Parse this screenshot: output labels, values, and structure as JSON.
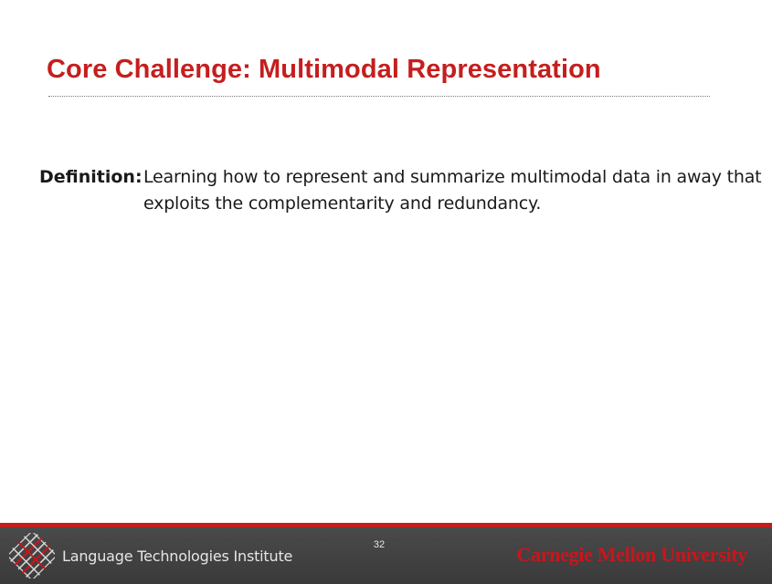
{
  "slide": {
    "title": "Core Challenge: Multimodal Representation",
    "definition_label": "Definition:",
    "definition_text": "Learning how to represent and summarize multimodal data in away that exploits the complementarity and redundancy."
  },
  "footer": {
    "institute": "Language Technologies Institute",
    "page_number": "32",
    "university": "Carnegie Mellon University",
    "logo_icon": "lti-logo-icon"
  },
  "colors": {
    "title": "#c51e1e",
    "accent_bar": "#c41b1b",
    "footer_bg": "#404040",
    "university_text": "#c8161d"
  }
}
